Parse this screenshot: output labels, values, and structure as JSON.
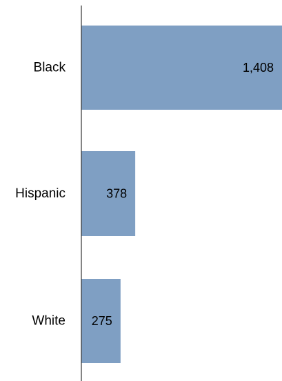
{
  "chart_data": {
    "type": "bar",
    "orientation": "horizontal",
    "categories": [
      "Black",
      "Hispanic",
      "White"
    ],
    "values": [
      1408,
      378,
      275
    ],
    "value_labels": [
      "1,408",
      "378",
      "275"
    ],
    "title": "",
    "xlabel": "",
    "ylabel": "",
    "xlim": [
      0,
      1408
    ],
    "grid": false,
    "legend": "none",
    "bar_color": "#7f9fc3",
    "axis_color": "#333333"
  }
}
